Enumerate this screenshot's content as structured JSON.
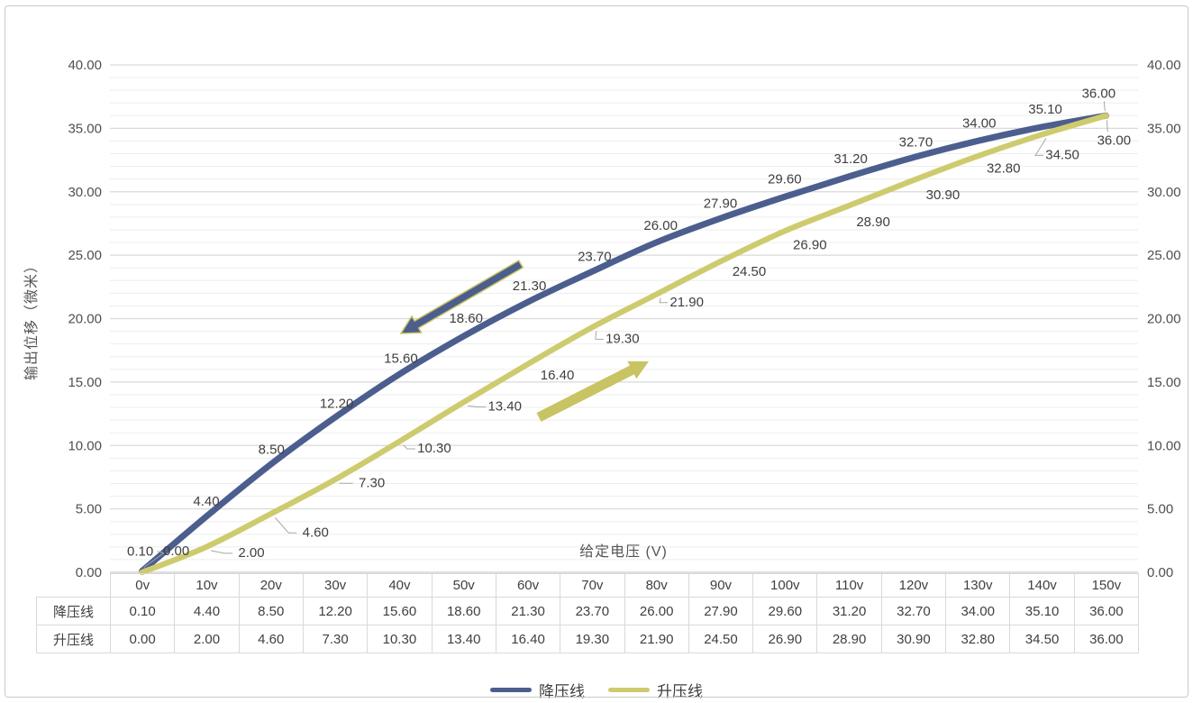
{
  "colors": {
    "down_line": "#4c5e8e",
    "up_line": "#cecb6f",
    "arrow_fill_yellow": "#c8c464",
    "arrow_outline": "#c8c464",
    "label_text": "#3f3f3f",
    "axis_text": "#4f4f4f",
    "grid_minor": "#ededed",
    "grid_major": "#d9d9d9",
    "axis_line": "#c9c9c9",
    "leader_line": "#a8a8a8",
    "table_border": "#d9d9d9"
  },
  "chart_data": {
    "type": "line",
    "title": "",
    "categories": [
      "0v",
      "10v",
      "20v",
      "30v",
      "40v",
      "50v",
      "60v",
      "70v",
      "80v",
      "90v",
      "100v",
      "110v",
      "120v",
      "130v",
      "140v",
      "150v"
    ],
    "series": [
      {
        "name": "降压线",
        "color": "#4c5e8e",
        "values": [
          0.1,
          4.4,
          8.5,
          12.2,
          15.6,
          18.6,
          21.3,
          23.7,
          26.0,
          27.9,
          29.6,
          31.2,
          32.7,
          34.0,
          35.1,
          36.0
        ]
      },
      {
        "name": "升压线",
        "color": "#cecb6f",
        "values": [
          0.0,
          2.0,
          4.6,
          7.3,
          10.3,
          13.4,
          16.4,
          19.3,
          21.9,
          24.5,
          26.9,
          28.9,
          30.9,
          32.8,
          34.5,
          36.0
        ]
      }
    ],
    "xlabel": "给定电压 (V)",
    "ylabel": "输出位移（微米）",
    "ylim": [
      0,
      40
    ],
    "ytick_labels": [
      "0.00",
      "5.00",
      "10.00",
      "15.00",
      "20.00",
      "25.00",
      "30.00",
      "35.00",
      "40.00"
    ],
    "ytick_step": 5,
    "minor_grid_step": 1,
    "grid": true,
    "dual_y_axis": true,
    "value_format": "0.00",
    "legend_position": "bottom",
    "legend_entries": [
      "降压线",
      "升压线"
    ],
    "annotations": [
      {
        "name": "hysteresis-arrow-down-left",
        "direction": "down-left",
        "fill": "#4c5e8e",
        "outline": "#c8c464"
      },
      {
        "name": "hysteresis-arrow-up-right",
        "direction": "up-right",
        "fill": "#c8c464"
      }
    ],
    "data_table": {
      "row_labels": [
        "降压线",
        "升压线"
      ]
    }
  }
}
